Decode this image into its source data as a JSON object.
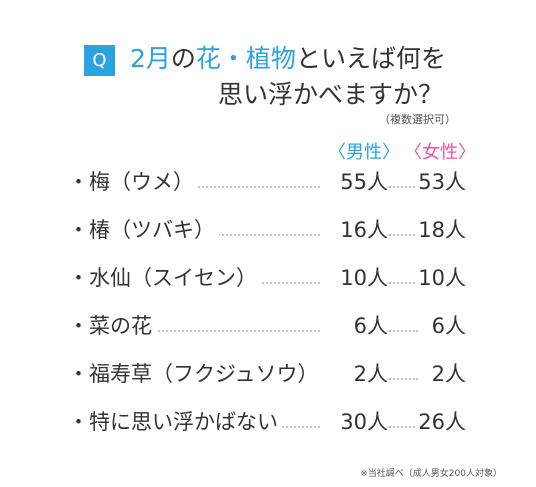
{
  "question_badge": "Q",
  "title": {
    "accent_1": "2月",
    "text_1": "の",
    "accent_2": "花・植物",
    "text_2": "といえば何を",
    "line_2": "思い浮かべますか？"
  },
  "note": "（複数選択可）",
  "colors": {
    "accent": "#2aa3e0",
    "male": "#2aa3e0",
    "female": "#e9559d"
  },
  "chart_data": {
    "type": "table",
    "columns": [
      "〈男性〉",
      "〈女性〉"
    ],
    "rows": [
      {
        "label": "・梅（ウメ）",
        "male": "55人",
        "female": "53人"
      },
      {
        "label": "・椿（ツバキ）",
        "male": "16人",
        "female": "18人"
      },
      {
        "label": "・水仙（スイセン）",
        "male": "10人",
        "female": "10人"
      },
      {
        "label": "・菜の花",
        "male": "6人",
        "female": "6人"
      },
      {
        "label": "・福寿草（フクジュソウ）",
        "male": "2人",
        "female": "2人"
      },
      {
        "label": "・特に思い浮かばない",
        "male": "30人",
        "female": "26人"
      }
    ]
  },
  "footnote": "※当社調べ（成人男女200人対象）"
}
